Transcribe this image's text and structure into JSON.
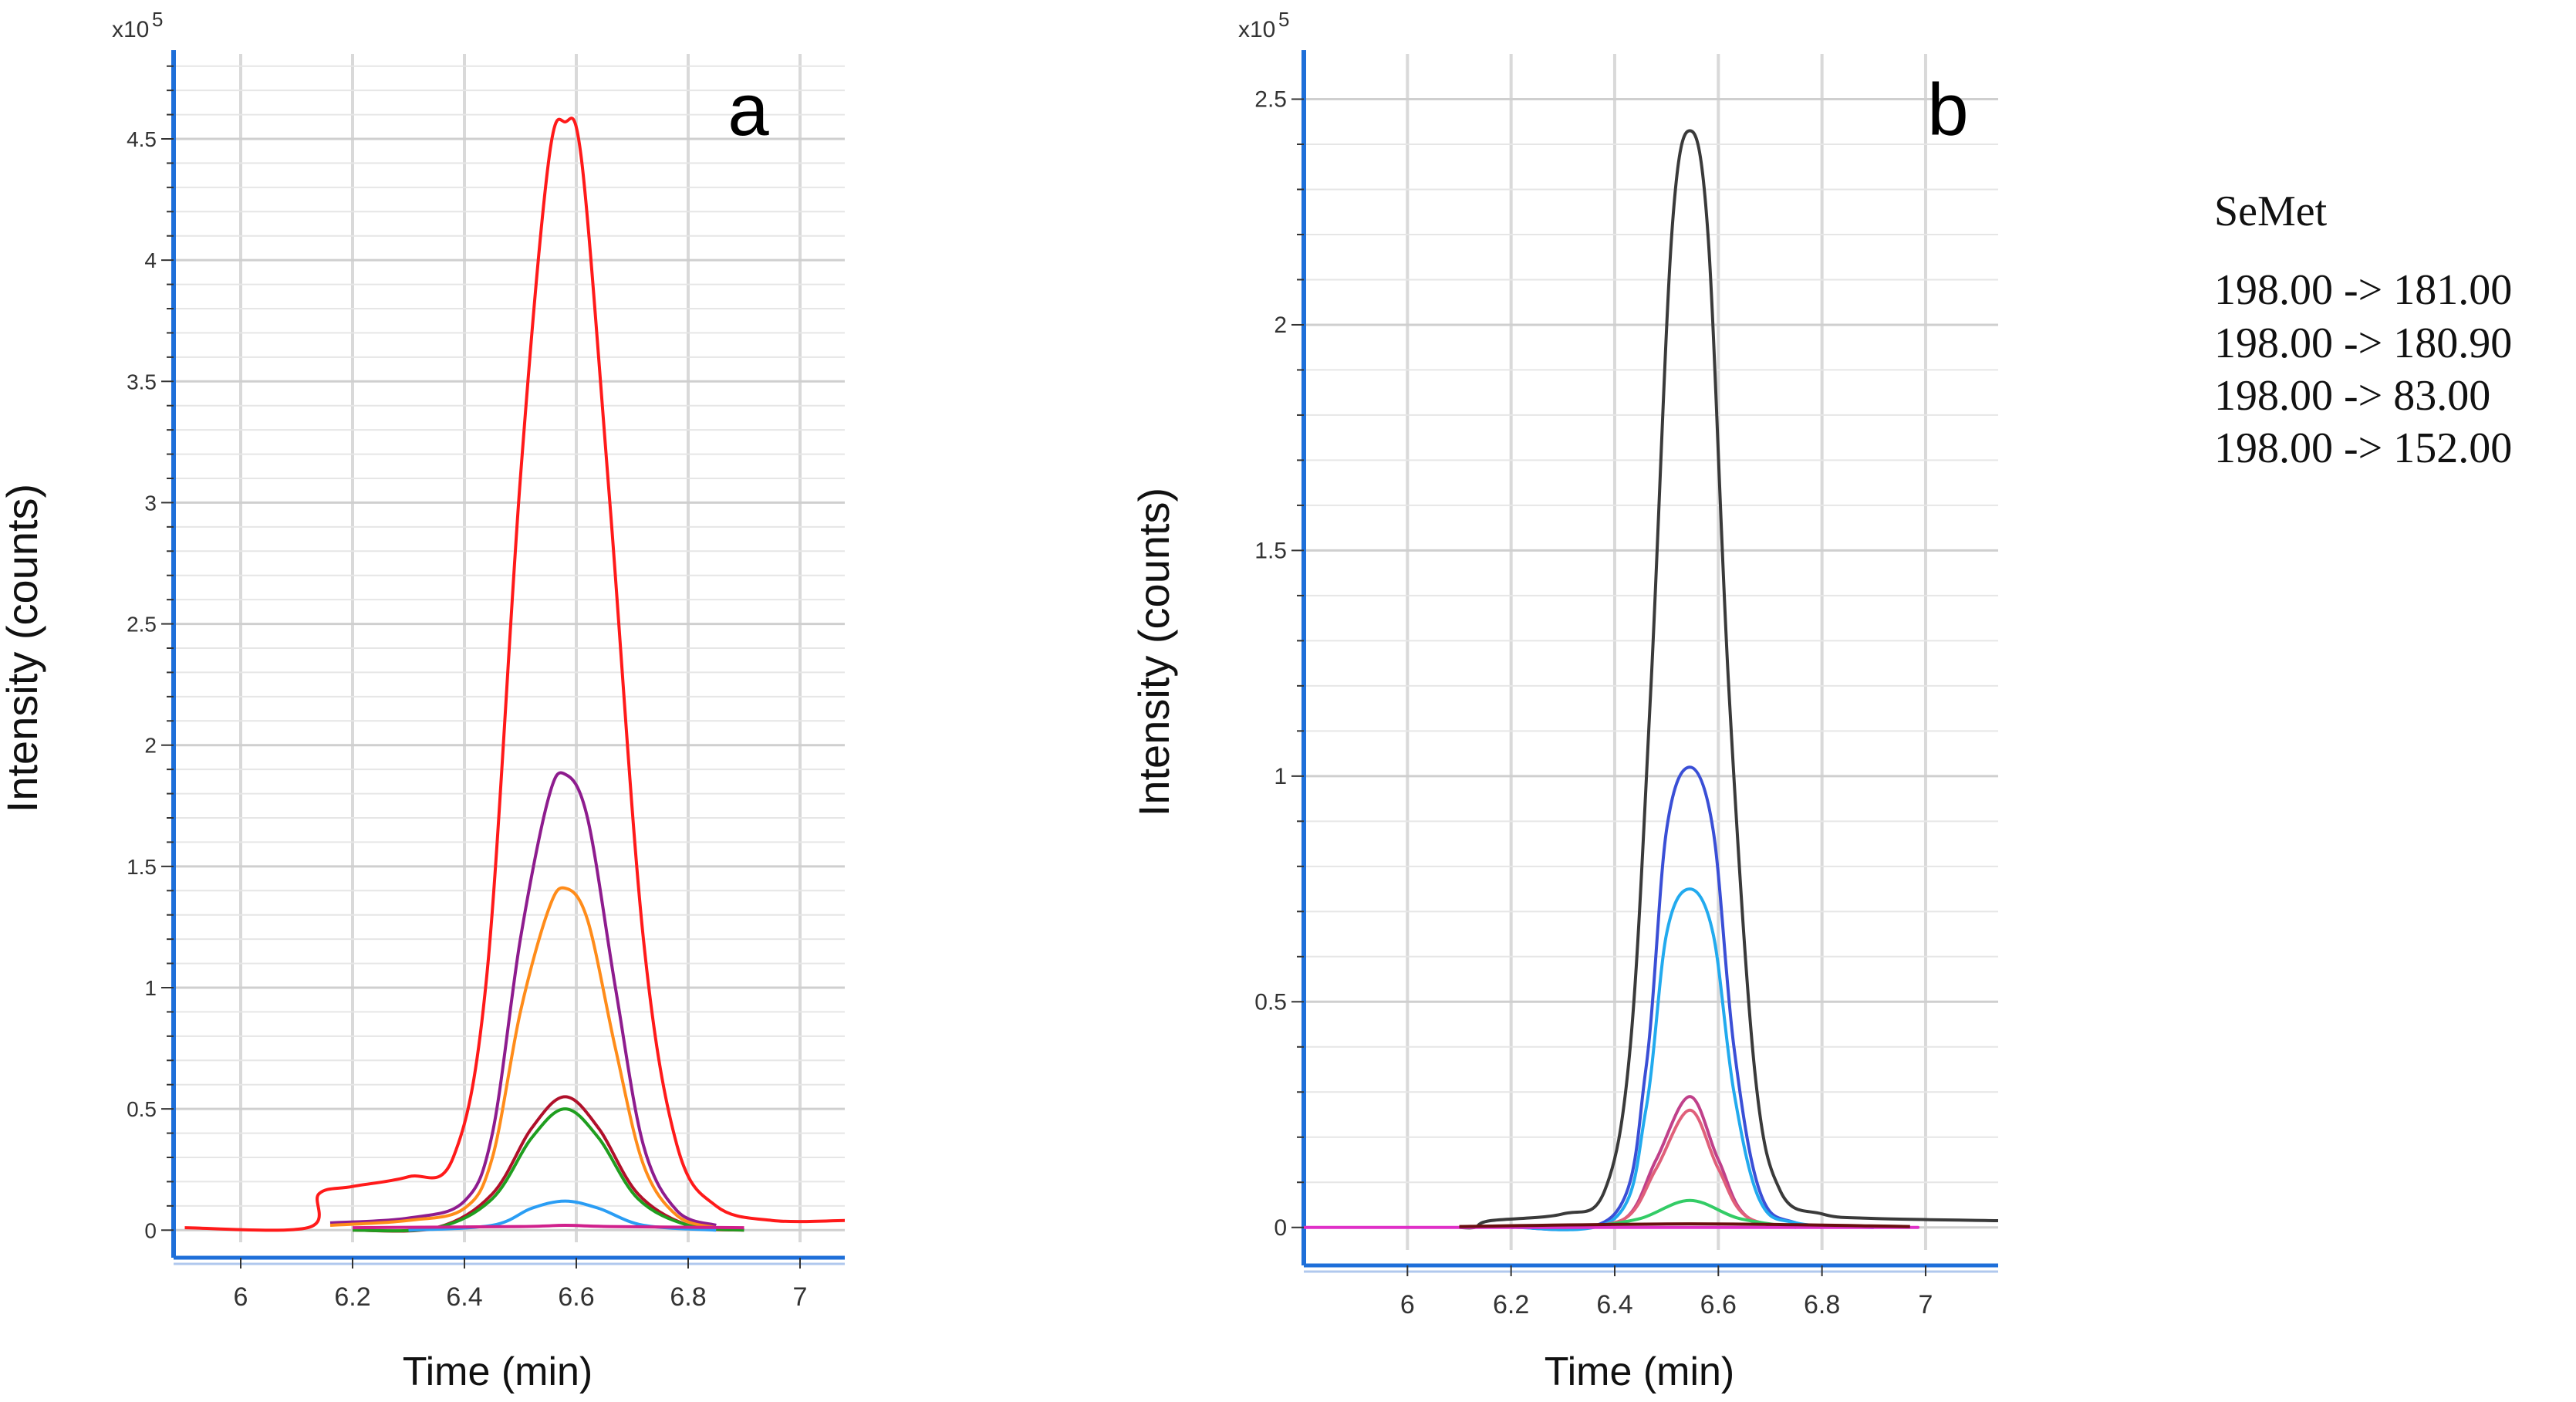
{
  "chart_data": [
    {
      "type": "line",
      "panel_label": "a",
      "xlabel": "Time (min)",
      "ylabel": "Intensity (counts)",
      "y_multiplier": "x10",
      "y_exponent": "5",
      "xlim": [
        5.88,
        7.08
      ],
      "ylim": [
        -0.05,
        4.85
      ],
      "xticks": [
        6,
        6.2,
        6.4,
        6.6,
        6.8,
        7
      ],
      "xtick_labels": [
        "6",
        "6.2",
        "6.4",
        "6.6",
        "6.8",
        "7"
      ],
      "yticks": [
        0,
        0.5,
        1,
        1.5,
        2,
        2.5,
        3,
        3.5,
        4,
        4.5
      ],
      "ytick_labels": [
        "0",
        "0.5",
        "1",
        "1.5",
        "2",
        "2.5",
        "3",
        "3.5",
        "4",
        "4.5"
      ],
      "grid": true,
      "series": [
        {
          "name": "red",
          "color": "#ff1a1a",
          "x": [
            5.9,
            6.12,
            6.14,
            6.2,
            6.3,
            6.38,
            6.44,
            6.5,
            6.55,
            6.58,
            6.61,
            6.66,
            6.72,
            6.78,
            6.85,
            6.95,
            7.08
          ],
          "y": [
            0.01,
            0.01,
            0.15,
            0.18,
            0.22,
            0.3,
            1.05,
            3.1,
            4.4,
            4.57,
            4.4,
            3.0,
            1.2,
            0.35,
            0.1,
            0.04,
            0.04
          ]
        },
        {
          "name": "purple",
          "color": "#8e1c8e",
          "x": [
            6.16,
            6.3,
            6.4,
            6.45,
            6.5,
            6.55,
            6.58,
            6.62,
            6.67,
            6.72,
            6.78,
            6.85
          ],
          "y": [
            0.03,
            0.05,
            0.12,
            0.4,
            1.2,
            1.78,
            1.88,
            1.7,
            1.0,
            0.35,
            0.08,
            0.02
          ]
        },
        {
          "name": "orange",
          "color": "#ff8c1a",
          "x": [
            6.16,
            6.3,
            6.4,
            6.45,
            6.5,
            6.55,
            6.58,
            6.62,
            6.67,
            6.72,
            6.78,
            6.85
          ],
          "y": [
            0.02,
            0.04,
            0.09,
            0.3,
            0.9,
            1.32,
            1.41,
            1.28,
            0.75,
            0.27,
            0.06,
            0.01
          ]
        },
        {
          "name": "dark-red",
          "color": "#b0102a",
          "x": [
            6.2,
            6.35,
            6.45,
            6.52,
            6.58,
            6.64,
            6.71,
            6.8,
            6.9
          ],
          "y": [
            0.0,
            0.01,
            0.15,
            0.42,
            0.55,
            0.42,
            0.15,
            0.02,
            0.0
          ]
        },
        {
          "name": "green",
          "color": "#1f9e1f",
          "x": [
            6.2,
            6.35,
            6.45,
            6.52,
            6.58,
            6.64,
            6.71,
            6.8,
            6.9
          ],
          "y": [
            0.0,
            0.01,
            0.13,
            0.38,
            0.5,
            0.38,
            0.13,
            0.02,
            0.0
          ]
        },
        {
          "name": "blue",
          "color": "#2a9df4",
          "x": [
            6.3,
            6.45,
            6.52,
            6.58,
            6.64,
            6.72,
            6.85
          ],
          "y": [
            0.0,
            0.02,
            0.09,
            0.12,
            0.09,
            0.02,
            0.0
          ]
        },
        {
          "name": "magenta",
          "color": "#d0208c",
          "x": [
            6.2,
            6.5,
            6.58,
            6.66,
            6.9
          ],
          "y": [
            0.01,
            0.015,
            0.02,
            0.015,
            0.01
          ]
        }
      ]
    },
    {
      "type": "line",
      "panel_label": "b",
      "xlabel": "Time (min)",
      "ylabel": "Intensity (counts)",
      "y_multiplier": "x10",
      "y_exponent": "5",
      "xlim": [
        5.8,
        7.14
      ],
      "ylim": [
        -0.05,
        2.6
      ],
      "xticks": [
        6,
        6.2,
        6.4,
        6.6,
        6.8,
        7
      ],
      "xtick_labels": [
        "6",
        "6.2",
        "6.4",
        "6.6",
        "6.8",
        "7"
      ],
      "yticks": [
        0,
        0.5,
        1,
        1.5,
        2,
        2.5
      ],
      "ytick_labels": [
        "0",
        "0.5",
        "1",
        "1.5",
        "2",
        "2.5"
      ],
      "grid": true,
      "series": [
        {
          "name": "gray",
          "color": "#3a3a3a",
          "x": [
            6.1,
            6.13,
            6.16,
            6.3,
            6.38,
            6.43,
            6.47,
            6.51,
            6.545,
            6.58,
            6.62,
            6.67,
            6.72,
            6.8,
            6.9,
            7.14
          ],
          "y": [
            0.0,
            0.0,
            0.015,
            0.03,
            0.08,
            0.4,
            1.2,
            2.2,
            2.43,
            2.2,
            1.2,
            0.35,
            0.08,
            0.03,
            0.02,
            0.015
          ]
        },
        {
          "name": "blue",
          "color": "#3a4fd6",
          "x": [
            6.2,
            6.4,
            6.46,
            6.5,
            6.545,
            6.59,
            6.63,
            6.68,
            6.75,
            6.9
          ],
          "y": [
            0.0,
            0.03,
            0.35,
            0.88,
            1.02,
            0.88,
            0.4,
            0.08,
            0.01,
            0.0
          ]
        },
        {
          "name": "cyan",
          "color": "#22aaee",
          "x": [
            6.2,
            6.4,
            6.46,
            6.5,
            6.545,
            6.59,
            6.63,
            6.68,
            6.75,
            6.9
          ],
          "y": [
            0.0,
            0.02,
            0.26,
            0.65,
            0.75,
            0.65,
            0.3,
            0.06,
            0.01,
            0.0
          ]
        },
        {
          "name": "pink",
          "color": "#c0408a",
          "x": [
            6.3,
            6.42,
            6.48,
            6.545,
            6.6,
            6.66,
            6.8
          ],
          "y": [
            0.0,
            0.02,
            0.15,
            0.29,
            0.15,
            0.02,
            0.0
          ]
        },
        {
          "name": "rose",
          "color": "#e0607a",
          "x": [
            6.3,
            6.42,
            6.48,
            6.545,
            6.6,
            6.66,
            6.8
          ],
          "y": [
            0.0,
            0.02,
            0.13,
            0.26,
            0.13,
            0.02,
            0.0
          ]
        },
        {
          "name": "green",
          "color": "#33cc66",
          "x": [
            6.35,
            6.45,
            6.545,
            6.64,
            6.75
          ],
          "y": [
            0.0,
            0.02,
            0.06,
            0.02,
            0.0
          ]
        },
        {
          "name": "magenta-baseline",
          "color": "#e030c8",
          "x": [
            5.8,
            6.1,
            6.9,
            6.97
          ],
          "y": [
            0.0,
            0.0,
            0.0,
            0.0
          ]
        },
        {
          "name": "dark-baseline",
          "color": "#6a0f0f",
          "x": [
            6.1,
            6.545,
            6.97
          ],
          "y": [
            0.002,
            0.008,
            0.002
          ]
        }
      ]
    }
  ],
  "legend": {
    "title": "SeMet",
    "items": [
      "198.00 -> 181.00",
      "198.00 -> 180.90",
      "198.00 -> 83.00",
      "198.00 -> 152.00"
    ]
  }
}
